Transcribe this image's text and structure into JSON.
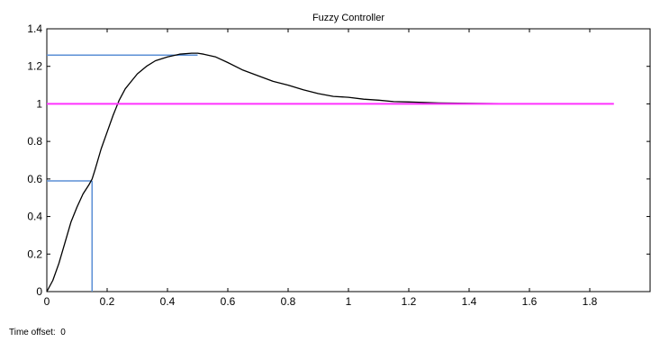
{
  "chart_data": {
    "type": "line",
    "title": "Fuzzy Controller",
    "xlabel": "",
    "ylabel": "",
    "xlim": [
      0,
      2.0
    ],
    "ylim": [
      0,
      1.4
    ],
    "xticks": [
      0,
      0.2,
      0.4,
      0.6,
      0.8,
      1,
      1.2,
      1.4,
      1.6,
      1.8
    ],
    "xtick_labels": [
      "0",
      "0.2",
      "0.4",
      "0.6",
      "0.8",
      "1",
      "1.2",
      "1.4",
      "1.6",
      "1.8"
    ],
    "yticks": [
      0,
      0.2,
      0.4,
      0.6,
      0.8,
      1,
      1.2,
      1.4
    ],
    "ytick_labels": [
      "0",
      "0.2",
      "0.4",
      "0.6",
      "0.8",
      "1",
      "1.2",
      "1.4"
    ],
    "grid": true,
    "series": [
      {
        "kind": "response",
        "color": "#000000",
        "x": [
          0,
          0.02,
          0.04,
          0.06,
          0.08,
          0.1,
          0.12,
          0.14,
          0.15,
          0.16,
          0.18,
          0.2,
          0.22,
          0.24,
          0.26,
          0.28,
          0.3,
          0.33,
          0.36,
          0.4,
          0.44,
          0.48,
          0.5,
          0.52,
          0.56,
          0.6,
          0.65,
          0.7,
          0.75,
          0.8,
          0.85,
          0.9,
          0.95,
          1.0,
          1.05,
          1.1,
          1.15,
          1.2,
          1.3,
          1.4,
          1.5,
          1.6,
          1.72
        ],
        "y": [
          0,
          0.06,
          0.15,
          0.26,
          0.37,
          0.45,
          0.52,
          0.57,
          0.6,
          0.65,
          0.76,
          0.85,
          0.94,
          1.02,
          1.08,
          1.12,
          1.16,
          1.2,
          1.23,
          1.25,
          1.265,
          1.27,
          1.27,
          1.265,
          1.25,
          1.22,
          1.18,
          1.15,
          1.12,
          1.1,
          1.075,
          1.055,
          1.04,
          1.035,
          1.025,
          1.02,
          1.012,
          1.01,
          1.005,
          1.003,
          1.001,
          1.0,
          1.0
        ]
      },
      {
        "kind": "setpoint",
        "color": "#ff33ff",
        "x": [
          0,
          1.88
        ],
        "y": [
          1,
          1
        ]
      }
    ],
    "annotations": [
      {
        "kind": "peak-marker",
        "color": "#5b8fd6",
        "x": 0.5,
        "y": 1.26
      },
      {
        "kind": "rise-marker",
        "color": "#5b8fd6",
        "x": 0.15,
        "y": 0.59
      }
    ]
  },
  "footer": {
    "label": "Time offset:",
    "value": "0"
  }
}
